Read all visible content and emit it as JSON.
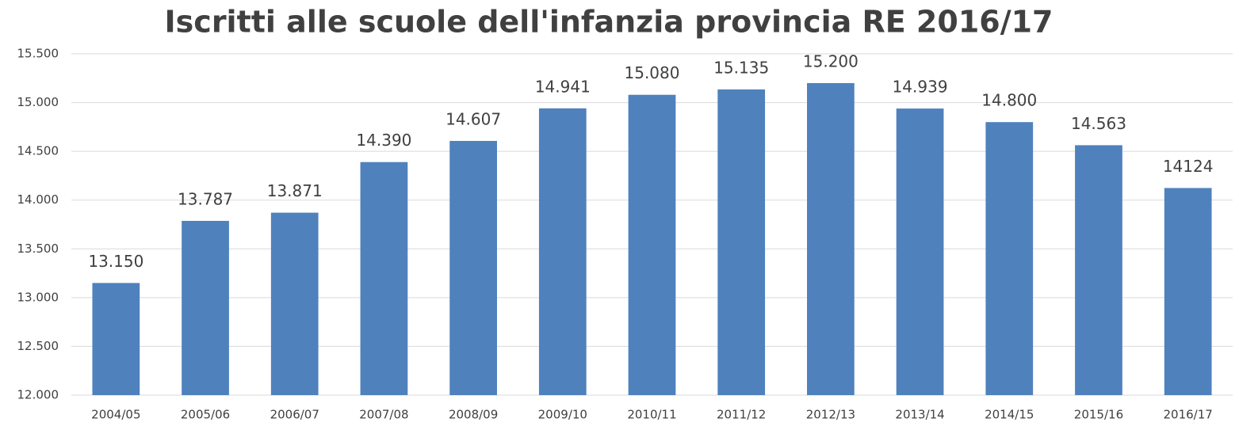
{
  "chart_data": {
    "type": "bar",
    "title": "Iscritti alle scuole dell'infanzia provincia RE 2016/17",
    "categories": [
      "2004/05",
      "2005/06",
      "2006/07",
      "2007/08",
      "2008/09",
      "2009/10",
      "2010/11",
      "2011/12",
      "2012/13",
      "2013/14",
      "2014/15",
      "2015/16",
      "2016/17"
    ],
    "values": [
      13150,
      13787,
      13871,
      14390,
      14607,
      14941,
      15080,
      15135,
      15200,
      14939,
      14800,
      14563,
      14124
    ],
    "value_labels": [
      "13.150",
      "13.787",
      "13.871",
      "14.390",
      "14.607",
      "14.941",
      "15.080",
      "15.135",
      "15.200",
      "14.939",
      "14.800",
      "14.563",
      "14124"
    ],
    "color": "#4f81bd",
    "ylim": [
      12000,
      15500
    ],
    "yticks": [
      {
        "value": 12000,
        "label": "12.000"
      },
      {
        "value": 12500,
        "label": "12.500"
      },
      {
        "value": 13000,
        "label": "13.000"
      },
      {
        "value": 13500,
        "label": "13.500"
      },
      {
        "value": 14000,
        "label": "14.000"
      },
      {
        "value": 14500,
        "label": "14.500"
      },
      {
        "value": 15000,
        "label": "15.000"
      },
      {
        "value": 15500,
        "label": "15.500"
      }
    ],
    "grid": true
  }
}
